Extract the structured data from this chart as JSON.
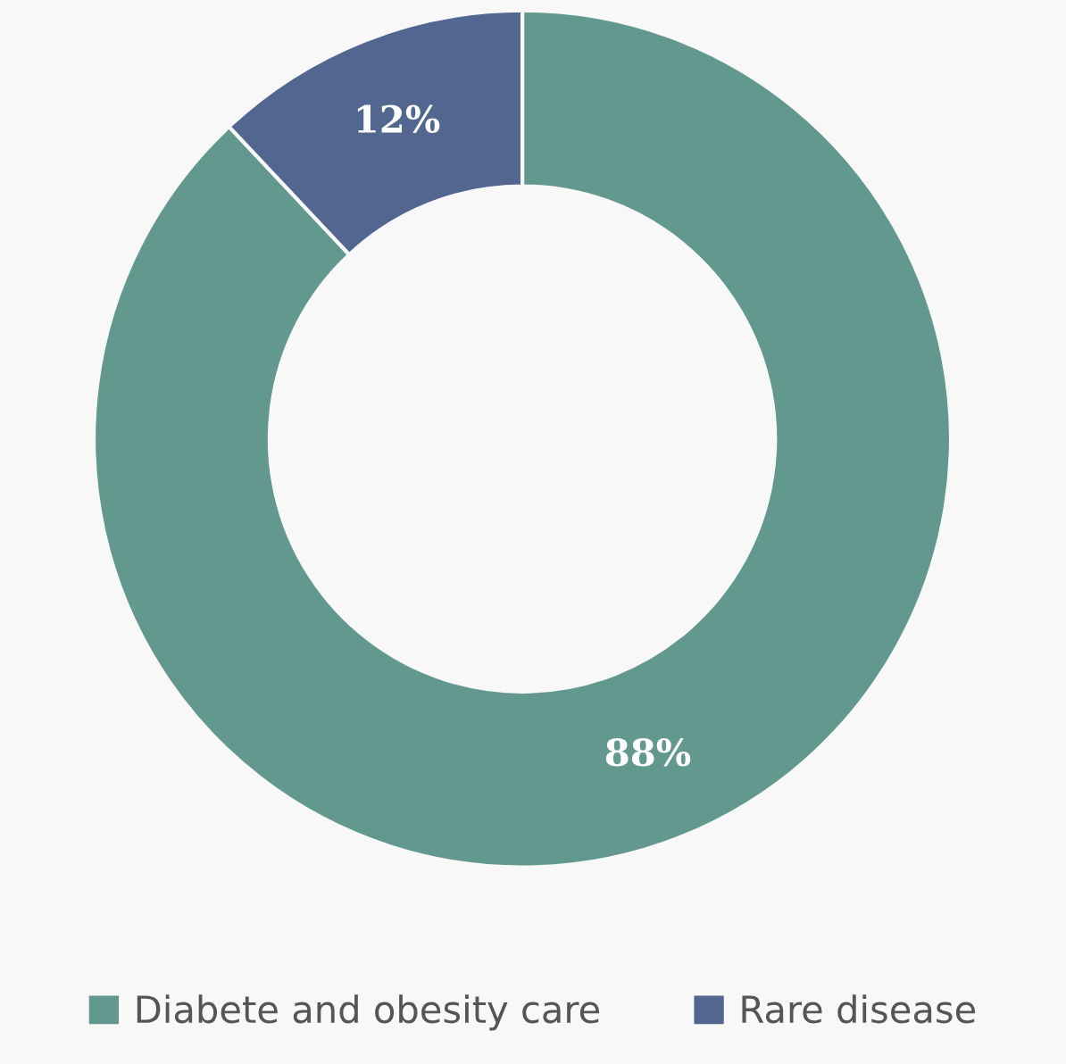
{
  "chart_data": {
    "type": "donut",
    "categories": [
      "Diabete and obesity care",
      "Rare disease"
    ],
    "values": [
      88,
      12
    ],
    "colors": [
      "#63988f",
      "#52668f"
    ],
    "value_labels": [
      "88%",
      "12%"
    ],
    "legend": "bottom"
  }
}
